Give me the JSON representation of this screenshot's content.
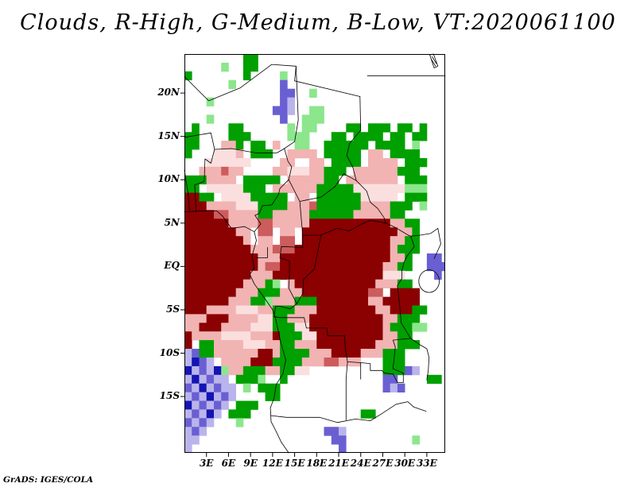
{
  "page": {
    "background": "#ffffff",
    "title": "Clouds, R-High, G-Medium, B-Low, VT:2020061100",
    "watermark": "GrADS: IGES/COLA"
  },
  "chart_data": {
    "type": "heatmap",
    "title": "Clouds, R-High, G-Medium, B-Low, VT:2020061100",
    "valid_time_label": "VT:2020061100",
    "color_meaning": {
      "red": "High clouds",
      "green": "Medium clouds",
      "blue": "Low clouds"
    },
    "lon_range": [
      0,
      35.5
    ],
    "lat_range": [
      -21.5,
      24.5
    ],
    "x_axis": {
      "ticks": [
        {
          "value": 3,
          "label": "3E"
        },
        {
          "value": 6,
          "label": "6E"
        },
        {
          "value": 9,
          "label": "9E"
        },
        {
          "value": 12,
          "label": "12E"
        },
        {
          "value": 15,
          "label": "15E"
        },
        {
          "value": 18,
          "label": "18E"
        },
        {
          "value": 21,
          "label": "21E"
        },
        {
          "value": 24,
          "label": "24E"
        },
        {
          "value": 27,
          "label": "27E"
        },
        {
          "value": 30,
          "label": "30E"
        },
        {
          "value": 33,
          "label": "33E"
        }
      ]
    },
    "y_axis": {
      "ticks": [
        {
          "value": 20,
          "label": "20N"
        },
        {
          "value": 15,
          "label": "15N"
        },
        {
          "value": 10,
          "label": "10N"
        },
        {
          "value": 5,
          "label": "5N"
        },
        {
          "value": 0,
          "label": "EQ"
        },
        {
          "value": -5,
          "label": "5S"
        },
        {
          "value": -10,
          "label": "10S"
        },
        {
          "value": -15,
          "label": "15S"
        }
      ]
    },
    "grid": {
      "cols": 36,
      "rows_count": 46,
      "cell_deg": 1,
      "palette": {
        ".": null,
        "R": "#8b0000",
        "r": "#cd5c5c",
        "p": "#f2b3b3",
        "P": "#fbdfdf",
        "G": "#00a000",
        "g": "#8ce68c",
        "B": "#1414b4",
        "b": "#6a5fd2",
        "v": "#bab4ec"
      },
      "rows": [
        "........GG..........................",
        ".....g..GG..........................",
        "G.......G....g......................",
        "......g......b......................",
        ".............bb..g..................",
        "...g.........bv.....................",
        "............bbv..gg.................",
        "...g.........b..ggg.................",
        ".G....GG......g.gg....GG.GGG.GG.G...",
        "GG....GGG.....ggg...GG.GGGG.GG.GG...",
        "GG...ppG.GG.p..gg..GGGGGG.GGGG.g....",
        "G...PPPp.GGG..pppp.GGGGG.pp.GGGG....",
        "...PPPPPP....pp..pp.GGGG.pppp.GGG...",
        "..ppprpp....ppPPPppGGG.ppppppGGG....",
        "GGGpppp.GGGGG.pppppGG.ppppppp.GGG...",
        "GG.PPPPPGGG.ppppppGGGGGPPPPPPPggg...",
        "RRGG.PPPPGGGGG.pp.GGGGGGPPPPP.GGG...",
        "RRRppppPPPGGGGppprGGGGGGppppGGG.g...",
        "RRRRrrppppGGpppppGGGGGGpppppGG......",
        "RRRRRRpppprrpppppRRRRRRRRRRRppGG....",
        "RRRRRRRpp.rr.pp.RRRRRRRRRRRRRppG....",
        "RRRRRRRRp.pp.rr.RRRRRRRRRRRRppGG....",
        "RRRRRRRRRppprrrRRRRRRRRRRRRRpGGG....",
        "RRRRRRRRRRpppRRRRRRRRRRRRRRRppG..bb.",
        "RRRRRRRRRRprrRRRRRRRRRRRRRRppGG..bbb",
        "RRRRRRRRRpppRRRRRRRRRRRRRRRPPP....b.",
        "RRRRRRRRpppGg.pRRRRRRRRRRRpppGG.....",
        "RRRRRRRpppGGGpppRRRRRRRRRrr.RRRR....",
        "RRRRRRpppGGgpppGGGRRRRRRRppRRRRR....",
        "RRRppppPPPppGGGpppRRRRRRRRppRRRGG...",
        "pppRRRppppPPGGpppRRRRRRRRRRppGGG....",
        "ppRRRppppPPPGGGPPRRRRRRRRRRpGGGgg...",
        "RppppPPPPpppRGGGPPRRRRRRRRRppGG.....",
        "R.GGppppPPPppGGpppRRRRRRRRpppGGG....",
        "vbGGppppppRRpGGGGpppRRRRpppGGG......",
        "vBbv.ppppRRRGGGGppprrppp...GGG......",
        "BvbvBgppGGGppGGPP..........GGGbv....",
        "vBvbvv.GGGg..G.............bb....GG.",
        "bvBvbvv.g.GGG..............bvb......",
        "vbvBvbv....GG.......................",
        "Bvbvbv.GGG..........................",
        "vbvBv.GGG...............GG..........",
        "bvbv...g............................",
        "vbv................bbv..............",
        "vv..................bb.........g....",
        "v....................b.............."
      ]
    },
    "map": {
      "borders": [
        [
          [
            0,
            6.3
          ],
          [
            2.3,
            6.4
          ],
          [
            4.4,
            6.4
          ],
          [
            5.2,
            5.8
          ],
          [
            6.4,
            4.4
          ],
          [
            8.2,
            4.6
          ],
          [
            9.5,
            4.0
          ],
          [
            9.8,
            3.0
          ],
          [
            9.2,
            1.2
          ],
          [
            9.5,
            -0.2
          ],
          [
            8.9,
            -0.9
          ],
          [
            9.5,
            -2.0
          ],
          [
            11.1,
            -3.9
          ],
          [
            12.0,
            -5.0
          ],
          [
            12.4,
            -6.0
          ],
          [
            13.1,
            -8.7
          ],
          [
            13.8,
            -10.8
          ],
          [
            13.4,
            -12.4
          ],
          [
            12.5,
            -13.6
          ],
          [
            12.2,
            -15.2
          ],
          [
            11.7,
            -16.3
          ],
          [
            11.8,
            -17.9
          ],
          [
            12.4,
            -18.9
          ],
          [
            13.2,
            -20.3
          ],
          [
            14.2,
            -21.5
          ]
        ],
        [
          [
            0,
            21.9
          ],
          [
            3.3,
            19.1
          ],
          [
            7.6,
            20.6
          ],
          [
            11.9,
            23.3
          ],
          [
            15.2,
            23.1
          ],
          [
            15.0,
            21.4
          ],
          [
            23.9,
            19.6
          ]
        ],
        [
          [
            0,
            14.9
          ],
          [
            3.6,
            15.4
          ],
          [
            4.1,
            13.5
          ],
          [
            3.6,
            11.9
          ],
          [
            2.8,
            12.4
          ],
          [
            2.7,
            9.8
          ],
          [
            1.4,
            9.4
          ],
          [
            1.6,
            6.3
          ]
        ],
        [
          [
            0.7,
            6.3
          ],
          [
            0.5,
            8.4
          ],
          [
            0,
            11.1
          ]
        ],
        [
          [
            4.1,
            13.5
          ],
          [
            6.4,
            13.6
          ],
          [
            9.7,
            13.1
          ],
          [
            12.6,
            13.1
          ],
          [
            13.6,
            13.6
          ]
        ],
        [
          [
            15.2,
            23.1
          ],
          [
            15.5,
            16.9
          ],
          [
            15.0,
            14.4
          ],
          [
            13.6,
            13.6
          ],
          [
            14.1,
            12.1
          ],
          [
            14.6,
            11.5
          ],
          [
            14.2,
            10.0
          ]
        ],
        [
          [
            14.2,
            10.0
          ],
          [
            13.0,
            9.0
          ],
          [
            12.8,
            8.3
          ],
          [
            11.9,
            7.1
          ],
          [
            10.6,
            7.0
          ],
          [
            10.2,
            6.1
          ],
          [
            9.6,
            5.9
          ],
          [
            10.4,
            4.9
          ],
          [
            9.5,
            4.0
          ]
        ],
        [
          [
            14.2,
            10.0
          ],
          [
            15.7,
            7.5
          ],
          [
            18.6,
            8.0
          ],
          [
            20.5,
            9.2
          ],
          [
            21.7,
            10.7
          ],
          [
            23.4,
            9.9
          ]
        ],
        [
          [
            23.9,
            19.6
          ],
          [
            24.0,
            15.7
          ],
          [
            22.5,
            14.2
          ],
          [
            22.1,
            12.8
          ],
          [
            22.9,
            11.5
          ],
          [
            23.4,
            9.9
          ]
        ],
        [
          [
            23.4,
            9.9
          ],
          [
            24.8,
            8.7
          ],
          [
            25.3,
            7.4
          ],
          [
            26.3,
            6.7
          ],
          [
            27.2,
            5.6
          ],
          [
            27.4,
            5.0
          ],
          [
            28.7,
            4.5
          ],
          [
            30.5,
            3.6
          ]
        ],
        [
          [
            16.1,
            3.6
          ],
          [
            18.5,
            3.6
          ],
          [
            20.8,
            4.4
          ],
          [
            22.4,
            4.1
          ],
          [
            24.4,
            5.0
          ],
          [
            25.3,
            5.3
          ],
          [
            26.8,
            5.1
          ],
          [
            27.4,
            5.0
          ]
        ],
        [
          [
            16.1,
            3.6
          ],
          [
            16.1,
            2.2
          ],
          [
            13.2,
            2.3
          ],
          [
            13.0,
            1.0
          ],
          [
            14.3,
            0.6
          ],
          [
            14.3,
            -1.0
          ],
          [
            14.2,
            -2.5
          ],
          [
            15.3,
            -4.3
          ],
          [
            16.2,
            -3.0
          ],
          [
            16.2,
            -1.5
          ],
          [
            17.7,
            -0.3
          ],
          [
            18.1,
            1.5
          ],
          [
            18.6,
            3.6
          ]
        ],
        [
          [
            15.3,
            -4.3
          ],
          [
            14.4,
            -4.9
          ],
          [
            13.1,
            -4.6
          ],
          [
            12.4,
            -4.6
          ],
          [
            12.2,
            -5.8
          ],
          [
            13.1,
            -5.9
          ],
          [
            16.3,
            -5.9
          ],
          [
            16.6,
            -7.1
          ],
          [
            19.4,
            -7.1
          ],
          [
            19.5,
            -8.0
          ],
          [
            21.8,
            -8.0
          ],
          [
            21.9,
            -9.4
          ],
          [
            22.2,
            -11.0
          ],
          [
            24.0,
            -11.1
          ],
          [
            24.0,
            -13.0
          ]
        ],
        [
          [
            22.2,
            -11.0
          ],
          [
            22.0,
            -13.0
          ],
          [
            22.0,
            -17.7
          ]
        ],
        [
          [
            24.0,
            -11.1
          ],
          [
            25.3,
            -11.2
          ],
          [
            25.3,
            -12.0
          ],
          [
            26.9,
            -12.0
          ],
          [
            27.2,
            -12.3
          ],
          [
            28.4,
            -12.4
          ],
          [
            29.0,
            -13.4
          ],
          [
            29.8,
            -13.4
          ],
          [
            29.8,
            -12.3
          ],
          [
            28.4,
            -11.8
          ],
          [
            28.7,
            -9.3
          ],
          [
            28.4,
            -8.5
          ],
          [
            30.8,
            -8.3
          ]
        ],
        [
          [
            30.8,
            -8.3
          ],
          [
            29.5,
            -6.5
          ],
          [
            29.3,
            -4.5
          ],
          [
            29.0,
            -2.2
          ],
          [
            29.6,
            -1.4
          ],
          [
            29.6,
            -0.5
          ],
          [
            29.9,
            0.5
          ],
          [
            30.3,
            1.2
          ],
          [
            31.3,
            2.3
          ],
          [
            30.8,
            3.5
          ],
          [
            30.5,
            3.6
          ]
        ],
        [
          [
            24.9,
            22.0
          ],
          [
            35.5,
            22.0
          ]
        ],
        [
          [
            30.8,
            -8.3
          ],
          [
            32.0,
            -9.0
          ],
          [
            33.0,
            -9.5
          ],
          [
            33.3,
            -10.5
          ],
          [
            33.2,
            -12.0
          ],
          [
            33.0,
            -13.1
          ]
        ],
        [
          [
            11.8,
            -17.2
          ],
          [
            13.9,
            -17.4
          ],
          [
            18.4,
            -17.4
          ],
          [
            20.8,
            -18.0
          ],
          [
            23.3,
            -17.6
          ]
        ],
        [
          [
            23.3,
            -17.6
          ],
          [
            25.3,
            -17.8
          ],
          [
            27.0,
            -16.9
          ],
          [
            28.8,
            -15.9
          ],
          [
            30.4,
            -15.6
          ],
          [
            31.2,
            -16.2
          ],
          [
            32.9,
            -16.7
          ]
        ],
        [
          [
            30.8,
            3.5
          ],
          [
            32.0,
            3.6
          ],
          [
            33.5,
            3.8
          ],
          [
            34.5,
            4.4
          ]
        ],
        [
          [
            15.7,
            7.5
          ],
          [
            16.1,
            3.6
          ]
        ],
        [
          [
            9.8,
            1.0
          ],
          [
            11.3,
            1.0
          ],
          [
            11.3,
            2.2
          ]
        ],
        [
          [
            34.5,
            4.4
          ],
          [
            34.9,
            2.6
          ],
          [
            34.0,
            0.9
          ]
        ]
      ],
      "lake_victoria": {
        "lon": 33.3,
        "lat": -1.7,
        "rx_deg": 1.4,
        "ry_deg": 1.3
      },
      "symbols": [
        [
          [
            33.4,
            24.4
          ],
          [
            34.0,
            22.9
          ],
          [
            34.5,
            23.1
          ],
          [
            33.9,
            24.5
          ],
          [
            33.4,
            24.4
          ]
        ],
        [
          [
            33.6,
            23.9
          ],
          [
            34.2,
            23.1
          ]
        ],
        [
          [
            33.7,
            24.2
          ],
          [
            34.3,
            23.4
          ]
        ]
      ]
    }
  }
}
